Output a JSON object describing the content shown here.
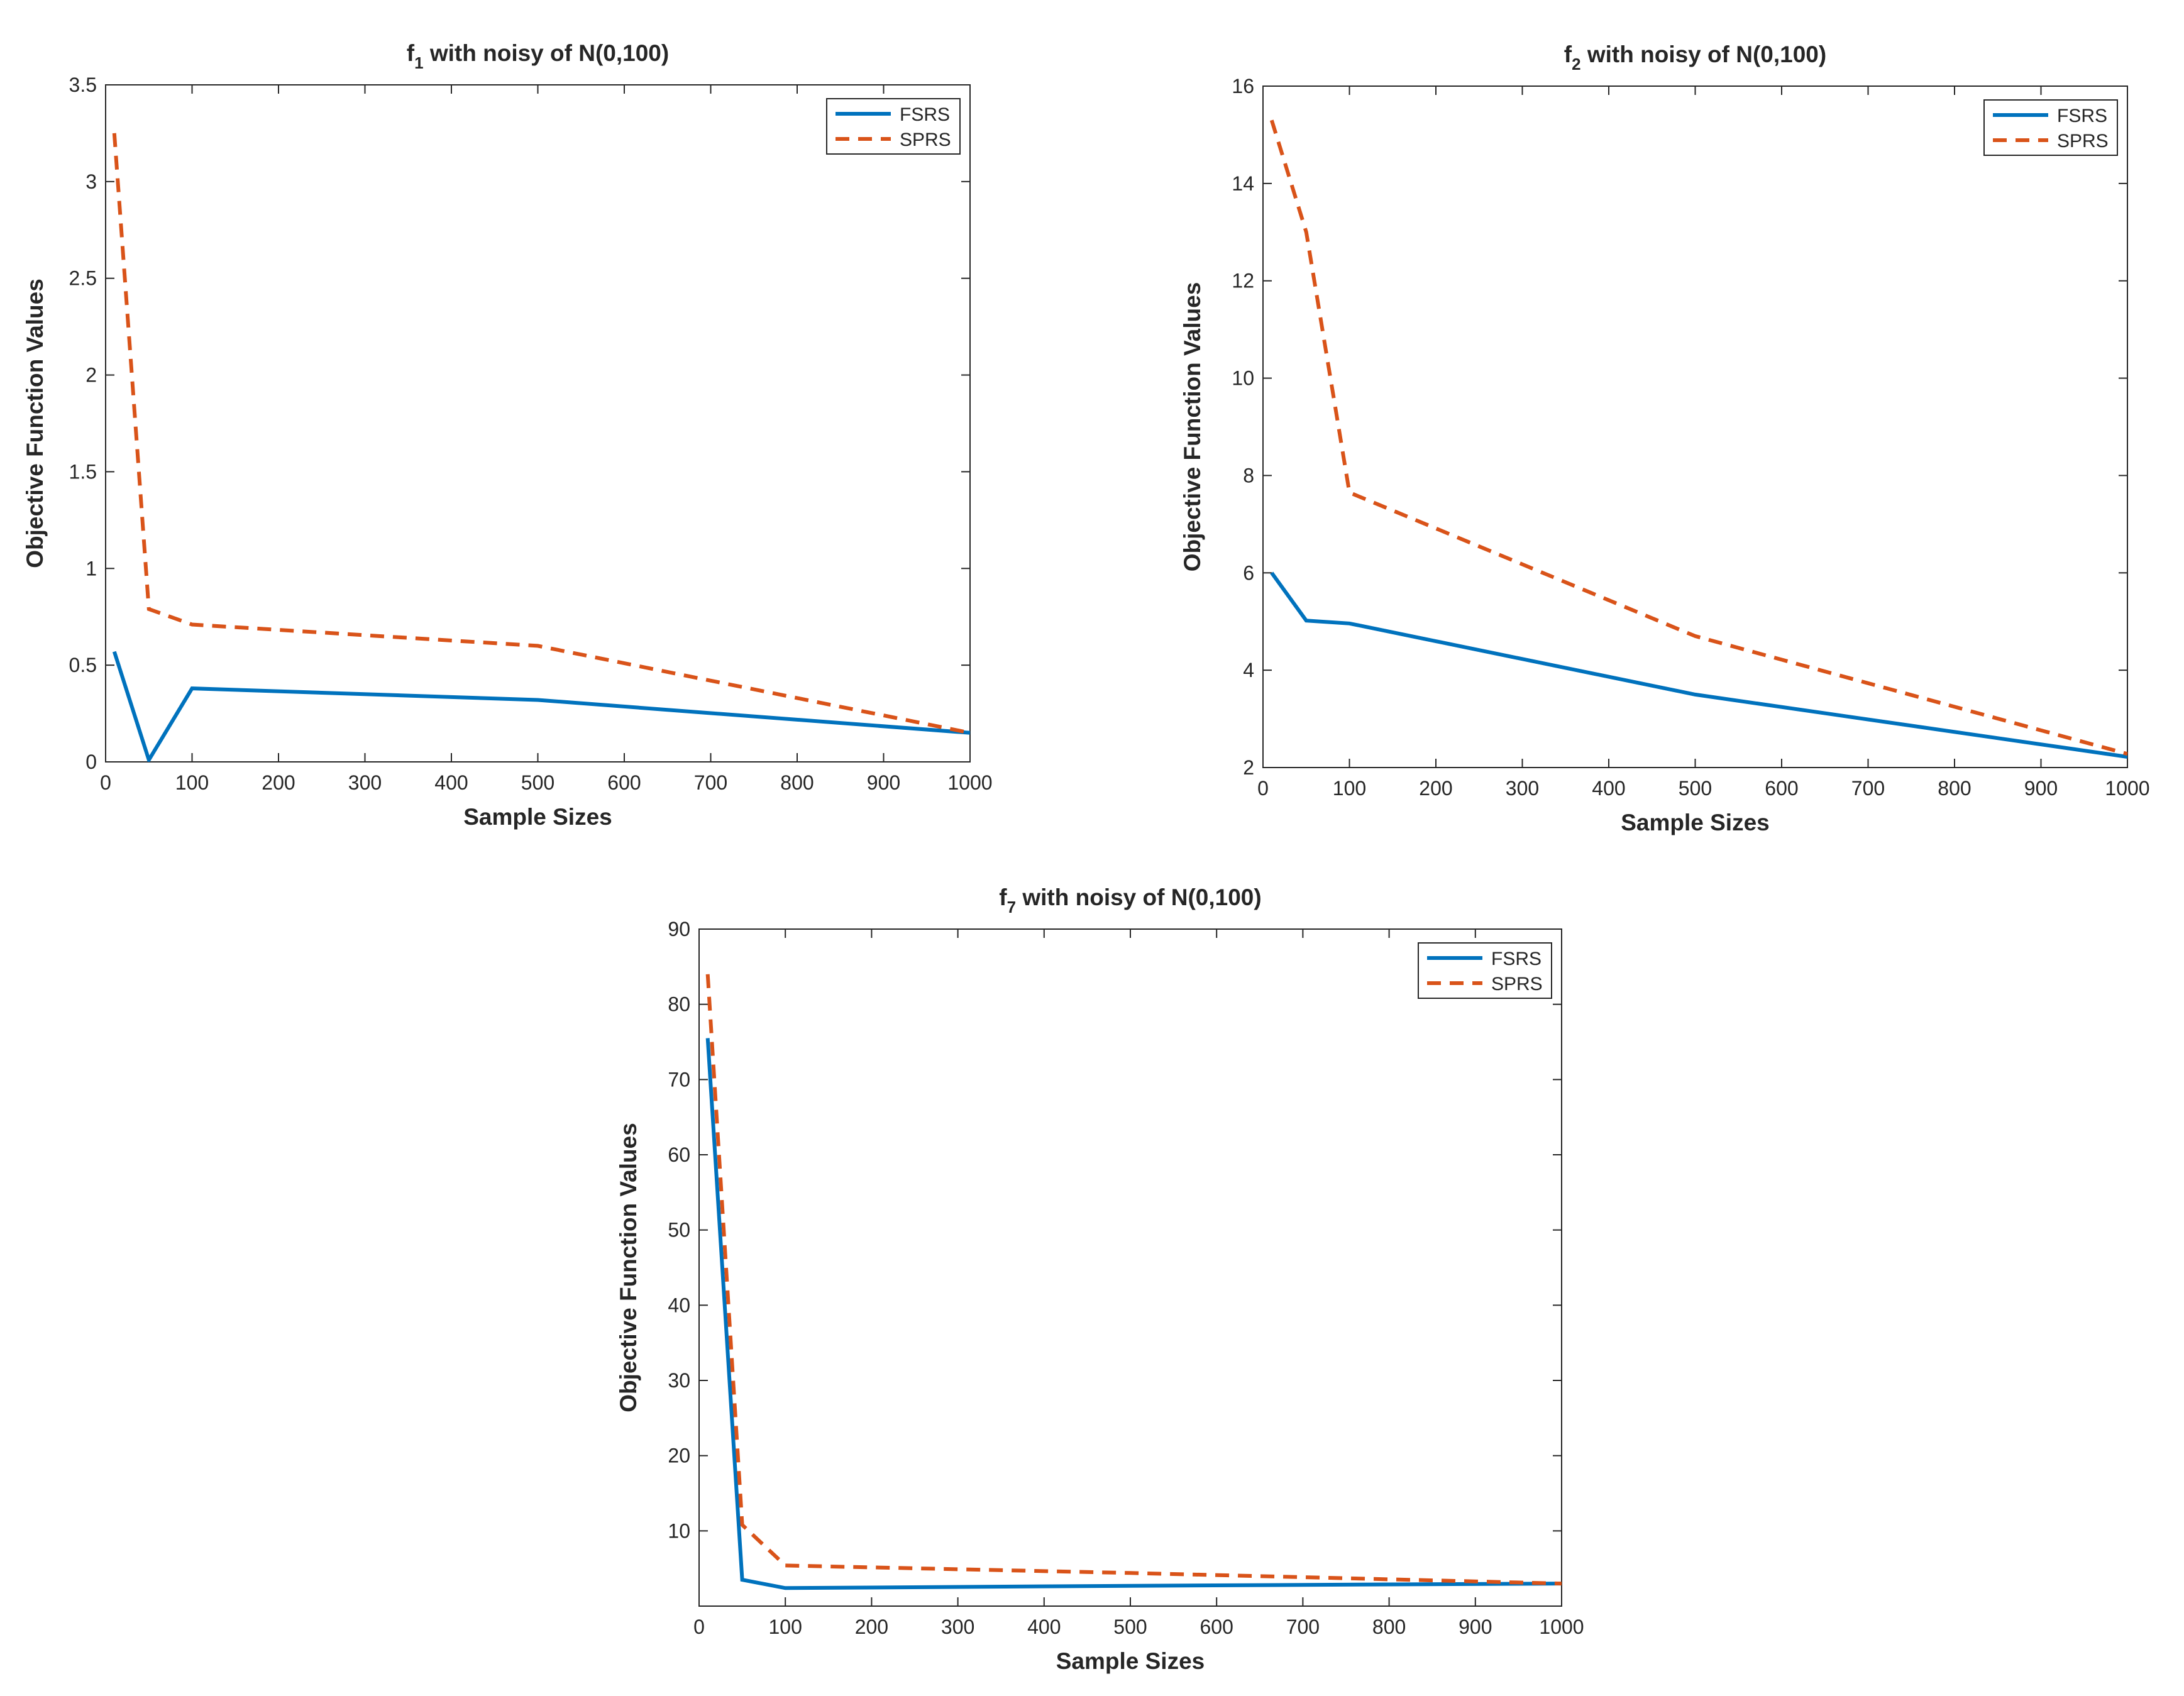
{
  "chart_data": [
    {
      "type": "line",
      "title": {
        "prefix": "f",
        "subscript": "1",
        "rest": " with noisy of N(0,100)"
      },
      "xlabel": "Sample Sizes",
      "ylabel": "Objective Function Values",
      "xlim": [
        0,
        1000
      ],
      "ylim": [
        0,
        3.5
      ],
      "xticks": [
        0,
        100,
        200,
        300,
        400,
        500,
        600,
        700,
        800,
        900,
        1000
      ],
      "yticks": [
        0,
        0.5,
        1,
        1.5,
        2,
        2.5,
        3,
        3.5
      ],
      "ytick_labels": [
        "0",
        "0.5",
        "1",
        "1.5",
        "2",
        "2.5",
        "3",
        "3.5"
      ],
      "grid": false,
      "legend_position": "top-right",
      "series": [
        {
          "name": "FSRS",
          "color": "#0072BD",
          "style": "solid",
          "x": [
            10,
            50,
            100,
            500,
            1000
          ],
          "y": [
            0.57,
            0.01,
            0.38,
            0.32,
            0.15
          ]
        },
        {
          "name": "SPRS",
          "color": "#D95319",
          "style": "dashed",
          "x": [
            10,
            50,
            100,
            500,
            1000
          ],
          "y": [
            3.25,
            0.79,
            0.71,
            0.6,
            0.15
          ]
        }
      ]
    },
    {
      "type": "line",
      "title": {
        "prefix": "f",
        "subscript": "2",
        "rest": " with noisy of N(0,100)"
      },
      "xlabel": "Sample Sizes",
      "ylabel": "Objective Function Values",
      "xlim": [
        0,
        1000
      ],
      "ylim": [
        2,
        16
      ],
      "xticks": [
        0,
        100,
        200,
        300,
        400,
        500,
        600,
        700,
        800,
        900,
        1000
      ],
      "yticks": [
        2,
        4,
        6,
        8,
        10,
        12,
        14,
        16
      ],
      "ytick_labels": [
        "2",
        "4",
        "6",
        "8",
        "10",
        "12",
        "14",
        "16"
      ],
      "grid": false,
      "legend_position": "top-right",
      "series": [
        {
          "name": "FSRS",
          "color": "#0072BD",
          "style": "solid",
          "x": [
            10,
            50,
            100,
            500,
            1000
          ],
          "y": [
            6.0,
            5.02,
            4.96,
            3.5,
            2.22
          ]
        },
        {
          "name": "SPRS",
          "color": "#D95319",
          "style": "dashed",
          "x": [
            10,
            50,
            100,
            500,
            1000
          ],
          "y": [
            15.3,
            13.0,
            7.65,
            4.7,
            2.28
          ]
        }
      ]
    },
    {
      "type": "line",
      "title": {
        "prefix": "f",
        "subscript": "7",
        "rest": " with noisy of N(0,100)"
      },
      "xlabel": "Sample Sizes",
      "ylabel": "Objective Function Values",
      "xlim": [
        0,
        1000
      ],
      "ylim": [
        0,
        90
      ],
      "xticks": [
        0,
        100,
        200,
        300,
        400,
        500,
        600,
        700,
        800,
        900,
        1000
      ],
      "yticks": [
        10,
        20,
        30,
        40,
        50,
        60,
        70,
        80,
        90
      ],
      "ytick_labels": [
        "10",
        "20",
        "30",
        "40",
        "50",
        "60",
        "70",
        "80",
        "90"
      ],
      "grid": false,
      "legend_position": "top-right",
      "series": [
        {
          "name": "FSRS",
          "color": "#0072BD",
          "style": "solid",
          "x": [
            10,
            50,
            100,
            500,
            1000
          ],
          "y": [
            75.5,
            3.5,
            2.4,
            2.7,
            3.0
          ]
        },
        {
          "name": "SPRS",
          "color": "#D95319",
          "style": "dashed",
          "x": [
            10,
            50,
            100,
            500,
            1000
          ],
          "y": [
            84.0,
            10.8,
            5.4,
            4.4,
            3.0
          ]
        }
      ]
    }
  ]
}
